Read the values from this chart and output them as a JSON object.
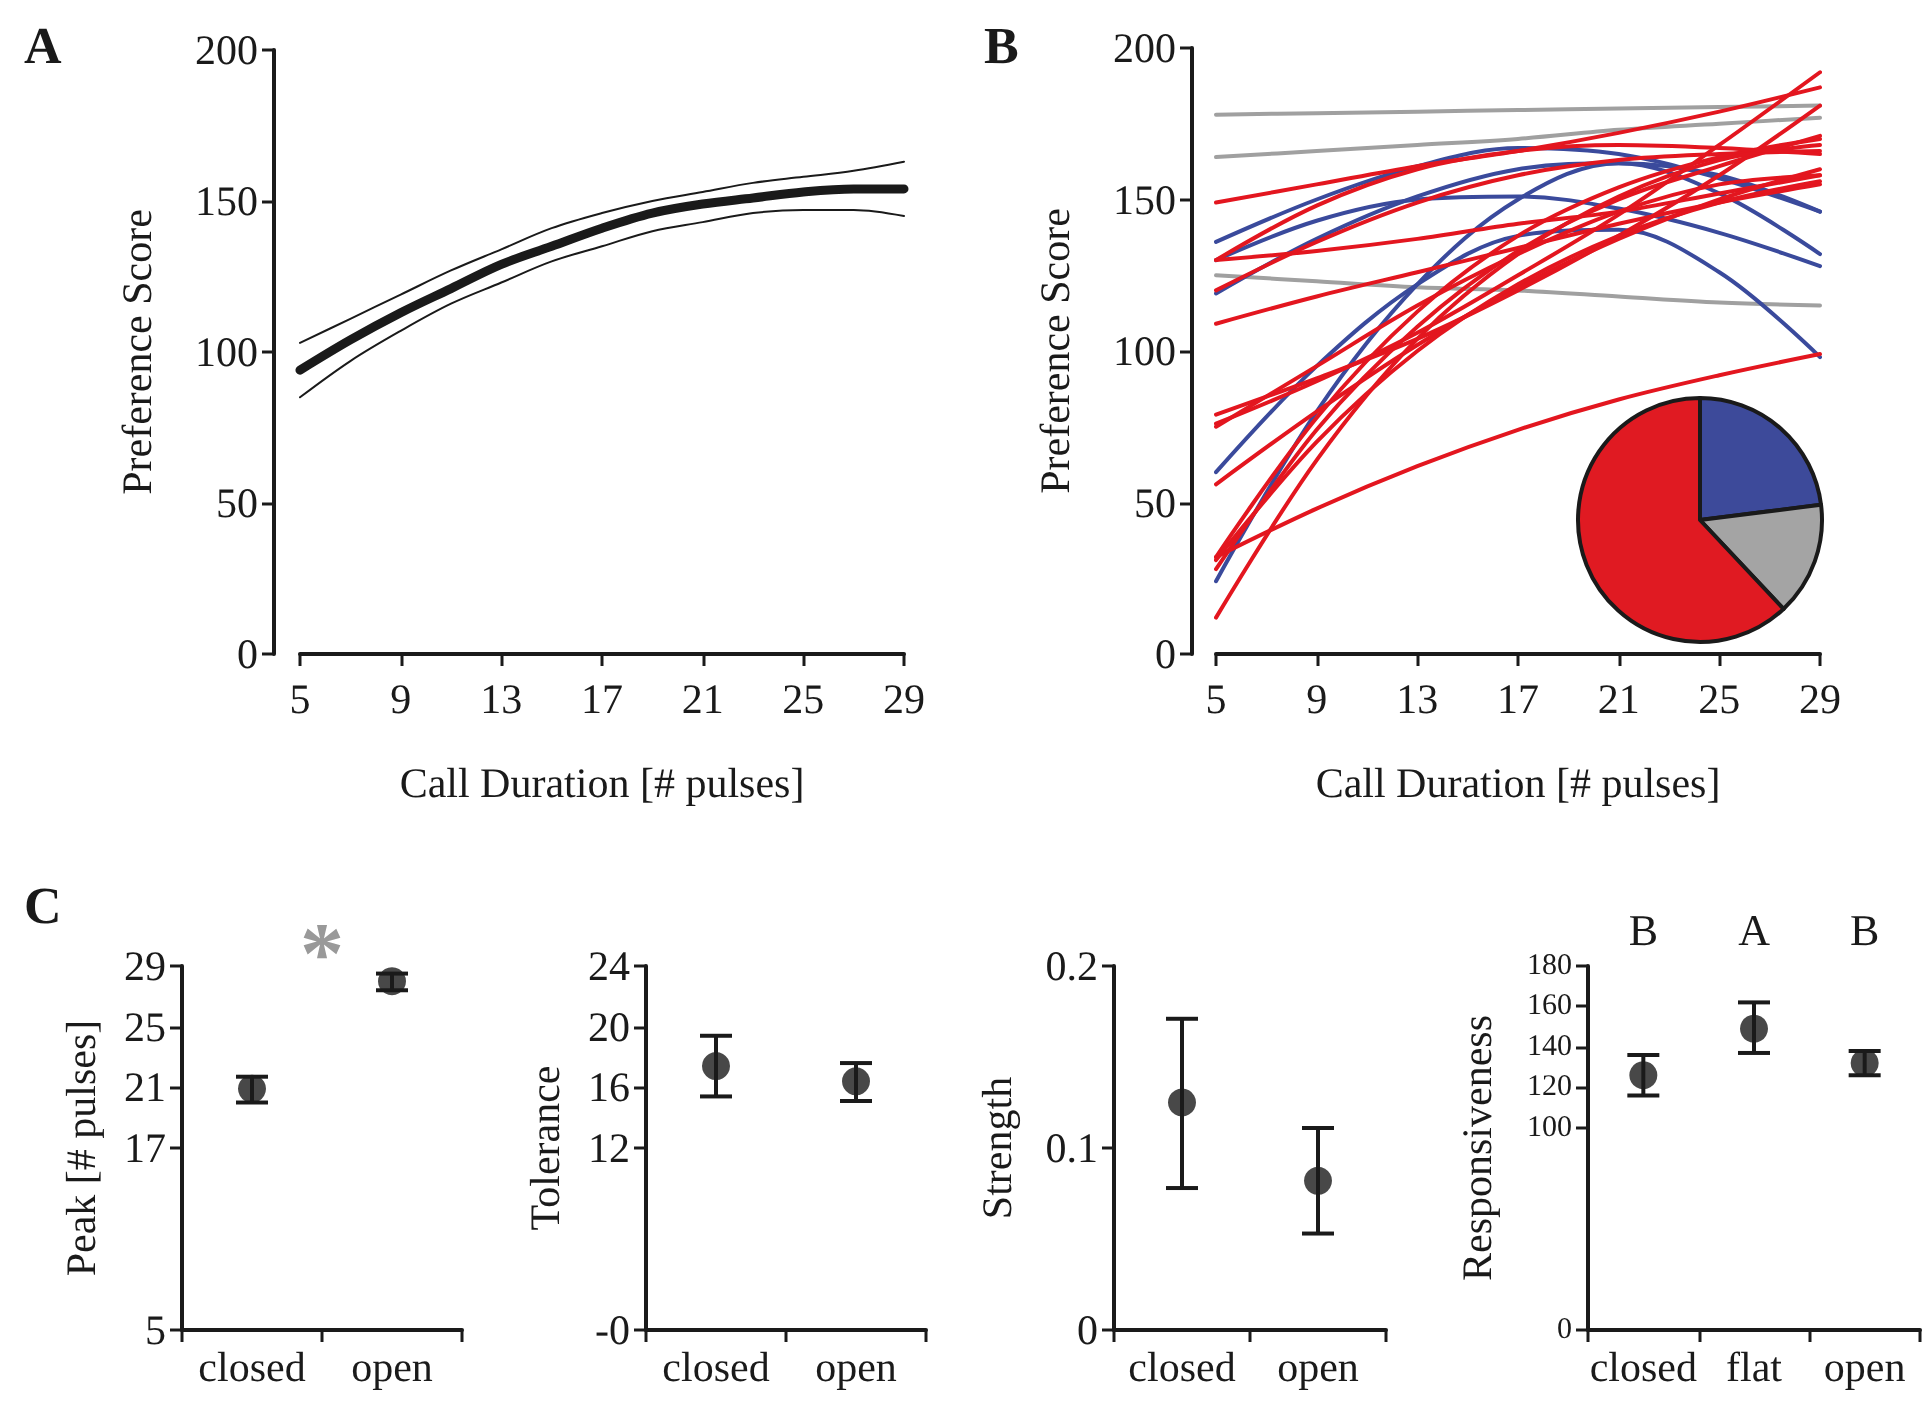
{
  "chart_data": [
    {
      "type": "line",
      "annotations": [
        "A"
      ],
      "xlabel": "Call Duration [# pulses]",
      "ylabel": "Preference Score",
      "x": [
        5,
        7,
        9,
        11,
        13,
        15,
        17,
        19,
        21,
        23,
        25,
        27,
        29
      ],
      "xlim": [
        5,
        29
      ],
      "xticks": [
        5,
        9,
        13,
        17,
        21,
        25,
        29
      ],
      "ylim": [
        0,
        200
      ],
      "yticks": [
        0,
        50,
        100,
        150,
        200
      ],
      "grid": false,
      "marker": "none",
      "line_style": "solid",
      "series": [
        {
          "color": "#1a1a1a",
          "values": [
            94,
            104,
            113,
            121,
            129,
            135,
            141,
            146,
            149,
            151,
            153,
            154,
            154
          ]
        },
        {
          "color": "#1a1a1a",
          "values": [
            85,
            97,
            107,
            116,
            123,
            130,
            135,
            140,
            143,
            146,
            147,
            147,
            145
          ]
        },
        {
          "color": "#1a1a1a",
          "values": [
            103,
            111,
            119,
            127,
            134,
            141,
            146,
            150,
            153,
            156,
            158,
            160,
            163
          ]
        }
      ]
    },
    {
      "type": "line",
      "annotations": [
        "B"
      ],
      "xlabel": "Call Duration [# pulses]",
      "ylabel": "Preference Score",
      "x": [
        5,
        9,
        13,
        17,
        21,
        25,
        29
      ],
      "xlim": [
        5,
        29
      ],
      "xticks": [
        5,
        9,
        13,
        17,
        21,
        25,
        29
      ],
      "ylim": [
        0,
        200
      ],
      "yticks": [
        0,
        50,
        100,
        150,
        200
      ],
      "grid": false,
      "marker": "none",
      "line_style": "solid",
      "series": [
        {
          "color": "#a0a0a0",
          "values": [
            178,
            178.5,
            179,
            179.5,
            180,
            180.5,
            181
          ]
        },
        {
          "color": "#a0a0a0",
          "values": [
            164,
            166,
            168,
            170,
            173,
            175,
            177
          ]
        },
        {
          "color": "#a0a0a0",
          "values": [
            125,
            123,
            121,
            120,
            118,
            116,
            115
          ]
        },
        {
          "color": "#3a4a9c",
          "values": [
            136,
            150,
            161,
            167,
            165,
            157,
            146
          ]
        },
        {
          "color": "#3a4a9c",
          "values": [
            130,
            143,
            150,
            151,
            147,
            139,
            128
          ]
        },
        {
          "color": "#3a4a9c",
          "values": [
            119,
            137,
            151,
            160,
            162,
            152,
            132
          ]
        },
        {
          "color": "#3a4a9c",
          "values": [
            60,
            95,
            122,
            138,
            140,
            126,
            98
          ]
        },
        {
          "color": "#3a4a9c",
          "values": [
            24,
            80,
            122,
            150,
            162,
            158,
            146
          ]
        },
        {
          "color": "#e3161f",
          "values": [
            149,
            155,
            161,
            166,
            172,
            179,
            187
          ]
        },
        {
          "color": "#e3161f",
          "values": [
            130,
            133,
            137,
            142,
            146,
            152,
            158
          ]
        },
        {
          "color": "#e3161f",
          "values": [
            120,
            136,
            149,
            158,
            163,
            165,
            166
          ]
        },
        {
          "color": "#e3161f",
          "values": [
            109,
            118,
            126,
            134,
            142,
            149,
            155
          ]
        },
        {
          "color": "#e3161f",
          "values": [
            79,
            91,
            104,
            120,
            138,
            158,
            181
          ]
        },
        {
          "color": "#e3161f",
          "values": [
            76,
            90,
            106,
            125,
            145,
            168,
            192
          ]
        },
        {
          "color": "#e3161f",
          "values": [
            56,
            80,
            102,
            121,
            137,
            150,
            160
          ]
        },
        {
          "color": "#e3161f",
          "values": [
            32,
            78,
            113,
            138,
            154,
            164,
            170
          ]
        },
        {
          "color": "#e3161f",
          "values": [
            28,
            74,
            108,
            133,
            150,
            161,
            171
          ]
        },
        {
          "color": "#e3161f",
          "values": [
            12,
            64,
            104,
            132,
            151,
            163,
            168
          ]
        },
        {
          "color": "#e3161f",
          "values": [
            32,
            48,
            62,
            74,
            84,
            92,
            99
          ]
        },
        {
          "color": "#e3161f",
          "values": [
            130,
            148,
            160,
            166,
            168,
            167,
            165
          ]
        },
        {
          "color": "#e3161f",
          "values": [
            31,
            70,
            100,
            122,
            138,
            149,
            156
          ]
        },
        {
          "color": "#e3161f",
          "values": [
            75,
            95,
            115,
            132,
            146,
            155,
            158
          ]
        }
      ]
    },
    {
      "type": "pie",
      "categories": [
        null,
        null,
        null
      ],
      "values": [
        23,
        15,
        62
      ],
      "colors": [
        "#3d4a9a",
        "#a4a4a4",
        "#e01a22"
      ]
    },
    {
      "type": "scatter",
      "annotations": [
        "C",
        "*"
      ],
      "ylabel": "Peak [# pulses]",
      "categories": [
        "closed",
        "open"
      ],
      "values": [
        20.9,
        28.0
      ],
      "errors": [
        [
          20.0,
          21.7
        ],
        [
          27.4,
          28.5
        ]
      ],
      "color": "#1a1a1a",
      "marker": "circle",
      "ylim": [
        5,
        29
      ],
      "yticks": [
        5,
        17,
        21,
        25,
        29
      ],
      "grid": false
    },
    {
      "type": "scatter",
      "ylabel": "Tolerance",
      "categories": [
        "closed",
        "open"
      ],
      "values": [
        17.4,
        16.4
      ],
      "errors": [
        [
          15.4,
          19.4
        ],
        [
          15.1,
          17.6
        ]
      ],
      "color": "#1a1a1a",
      "marker": "circle",
      "ylim": [
        0,
        24
      ],
      "yticks": [
        {
          "value": 0,
          "label": "-0"
        },
        12,
        16,
        20,
        24
      ],
      "grid": false
    },
    {
      "type": "scatter",
      "ylabel": "Strength",
      "categories": [
        "closed",
        "open"
      ],
      "values": [
        0.125,
        0.082
      ],
      "errors": [
        [
          0.078,
          0.171
        ],
        [
          0.053,
          0.111
        ]
      ],
      "color": "#1a1a1a",
      "marker": "circle",
      "ylim": [
        0,
        0.2
      ],
      "yticks": [
        0,
        0.1,
        0.2
      ],
      "grid": false
    },
    {
      "type": "scatter",
      "annotations": [
        "B",
        "A",
        "B"
      ],
      "ylabel": "Responsiveness",
      "categories": [
        "closed",
        "flat",
        "open"
      ],
      "values": [
        126,
        149,
        132
      ],
      "errors": [
        [
          116,
          136
        ],
        [
          137,
          162
        ],
        [
          126,
          138
        ]
      ],
      "color": "#1a1a1a",
      "marker": "circle",
      "ylim": [
        0,
        180
      ],
      "yticks": [
        0,
        100,
        120,
        140,
        160,
        180
      ],
      "grid": false
    }
  ]
}
